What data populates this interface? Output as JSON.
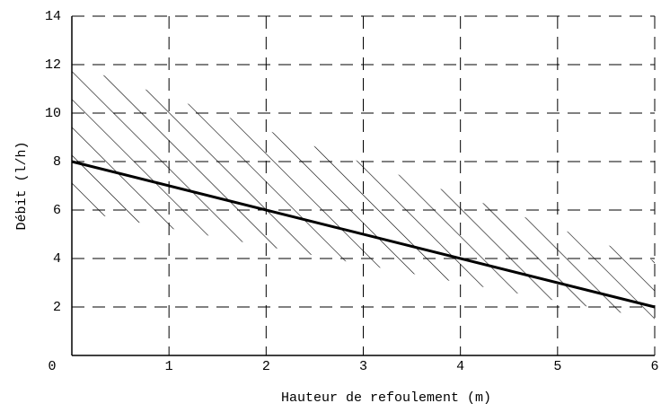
{
  "chart_data": {
    "type": "line",
    "xlabel": "Hauteur de refoulement (m)",
    "ylabel": "Débit (l/h)",
    "x": [
      0,
      6
    ],
    "series": [
      {
        "color": "#000000",
        "values": [
          8,
          2
        ]
      }
    ],
    "band": {
      "x": [
        0,
        6
      ],
      "upper": [
        12,
        3.9
      ],
      "lower": [
        6,
        1.5
      ]
    },
    "xlim": [
      0,
      6
    ],
    "xticks": [
      0,
      1,
      2,
      3,
      4,
      5,
      6
    ],
    "ylim": [
      0,
      14
    ],
    "yticks": [
      2,
      4,
      6,
      8,
      10,
      12,
      14
    ],
    "grid": true
  }
}
